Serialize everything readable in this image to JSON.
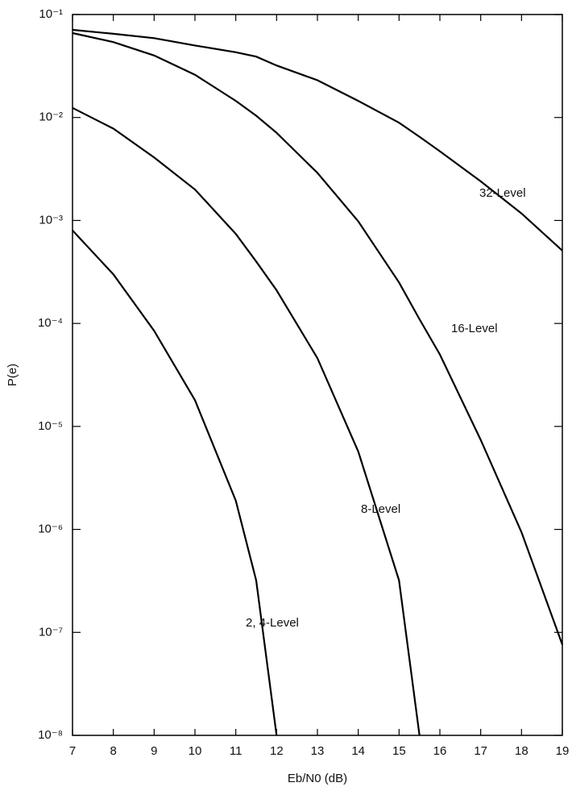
{
  "chart_data": {
    "type": "line",
    "x_label": "Eb/N0 (dB)",
    "y_label": "P(e)",
    "x": [
      7,
      8,
      9,
      10,
      11,
      11.5,
      12,
      13,
      14,
      15,
      15.5,
      16,
      17,
      18,
      19
    ],
    "series": [
      {
        "name": "32-Level",
        "color": "#000000",
        "values": [
          0.071,
          0.065,
          0.059,
          0.05,
          0.043,
          0.039,
          0.032,
          0.023,
          0.0145,
          0.0089,
          0.0065,
          0.0047,
          0.0024,
          0.00117,
          0.00051
        ]
      },
      {
        "name": "16-Level",
        "color": "#000000",
        "values": [
          0.066,
          0.054,
          0.04,
          0.026,
          0.0145,
          0.0104,
          0.0071,
          0.0029,
          0.00098,
          0.00025,
          0.00011,
          5e-05,
          7.4e-06,
          9.4e-07,
          7.6e-08
        ]
      },
      {
        "name": "8-Level",
        "color": "#000000",
        "values": [
          0.0124,
          0.0078,
          0.0041,
          0.002,
          0.00074,
          0.0004,
          0.00021,
          4.6e-05,
          5.7e-06,
          3.2e-07,
          1e-08,
          null,
          null,
          null,
          null
        ]
      },
      {
        "name": "2, 4-Level",
        "color": "#000000",
        "values": [
          0.0008,
          0.0003,
          8.5e-05,
          1.8e-05,
          1.9e-06,
          3.2e-07,
          1e-08,
          null,
          null,
          null,
          null,
          null,
          null,
          null,
          null
        ]
      }
    ],
    "xlim": [
      7,
      19
    ],
    "ylim": [
      1e-08,
      0.1
    ],
    "log_y": true,
    "grid": false,
    "xticks": [
      7,
      8,
      9,
      10,
      11,
      12,
      13,
      14,
      15,
      16,
      17,
      18,
      19
    ],
    "yticks": [
      {
        "value": 1e-08,
        "label": "10⁻⁸"
      },
      {
        "value": 1e-07,
        "label": "10⁻⁷"
      },
      {
        "value": 1e-06,
        "label": "10⁻⁶"
      },
      {
        "value": 1e-05,
        "label": "10⁻⁵"
      },
      {
        "value": 0.0001,
        "label": "10⁻⁴"
      },
      {
        "value": 0.001,
        "label": "10⁻³"
      },
      {
        "value": 0.01,
        "label": "10⁻²"
      },
      {
        "value": 0.1,
        "label": "10⁻¹"
      }
    ]
  }
}
